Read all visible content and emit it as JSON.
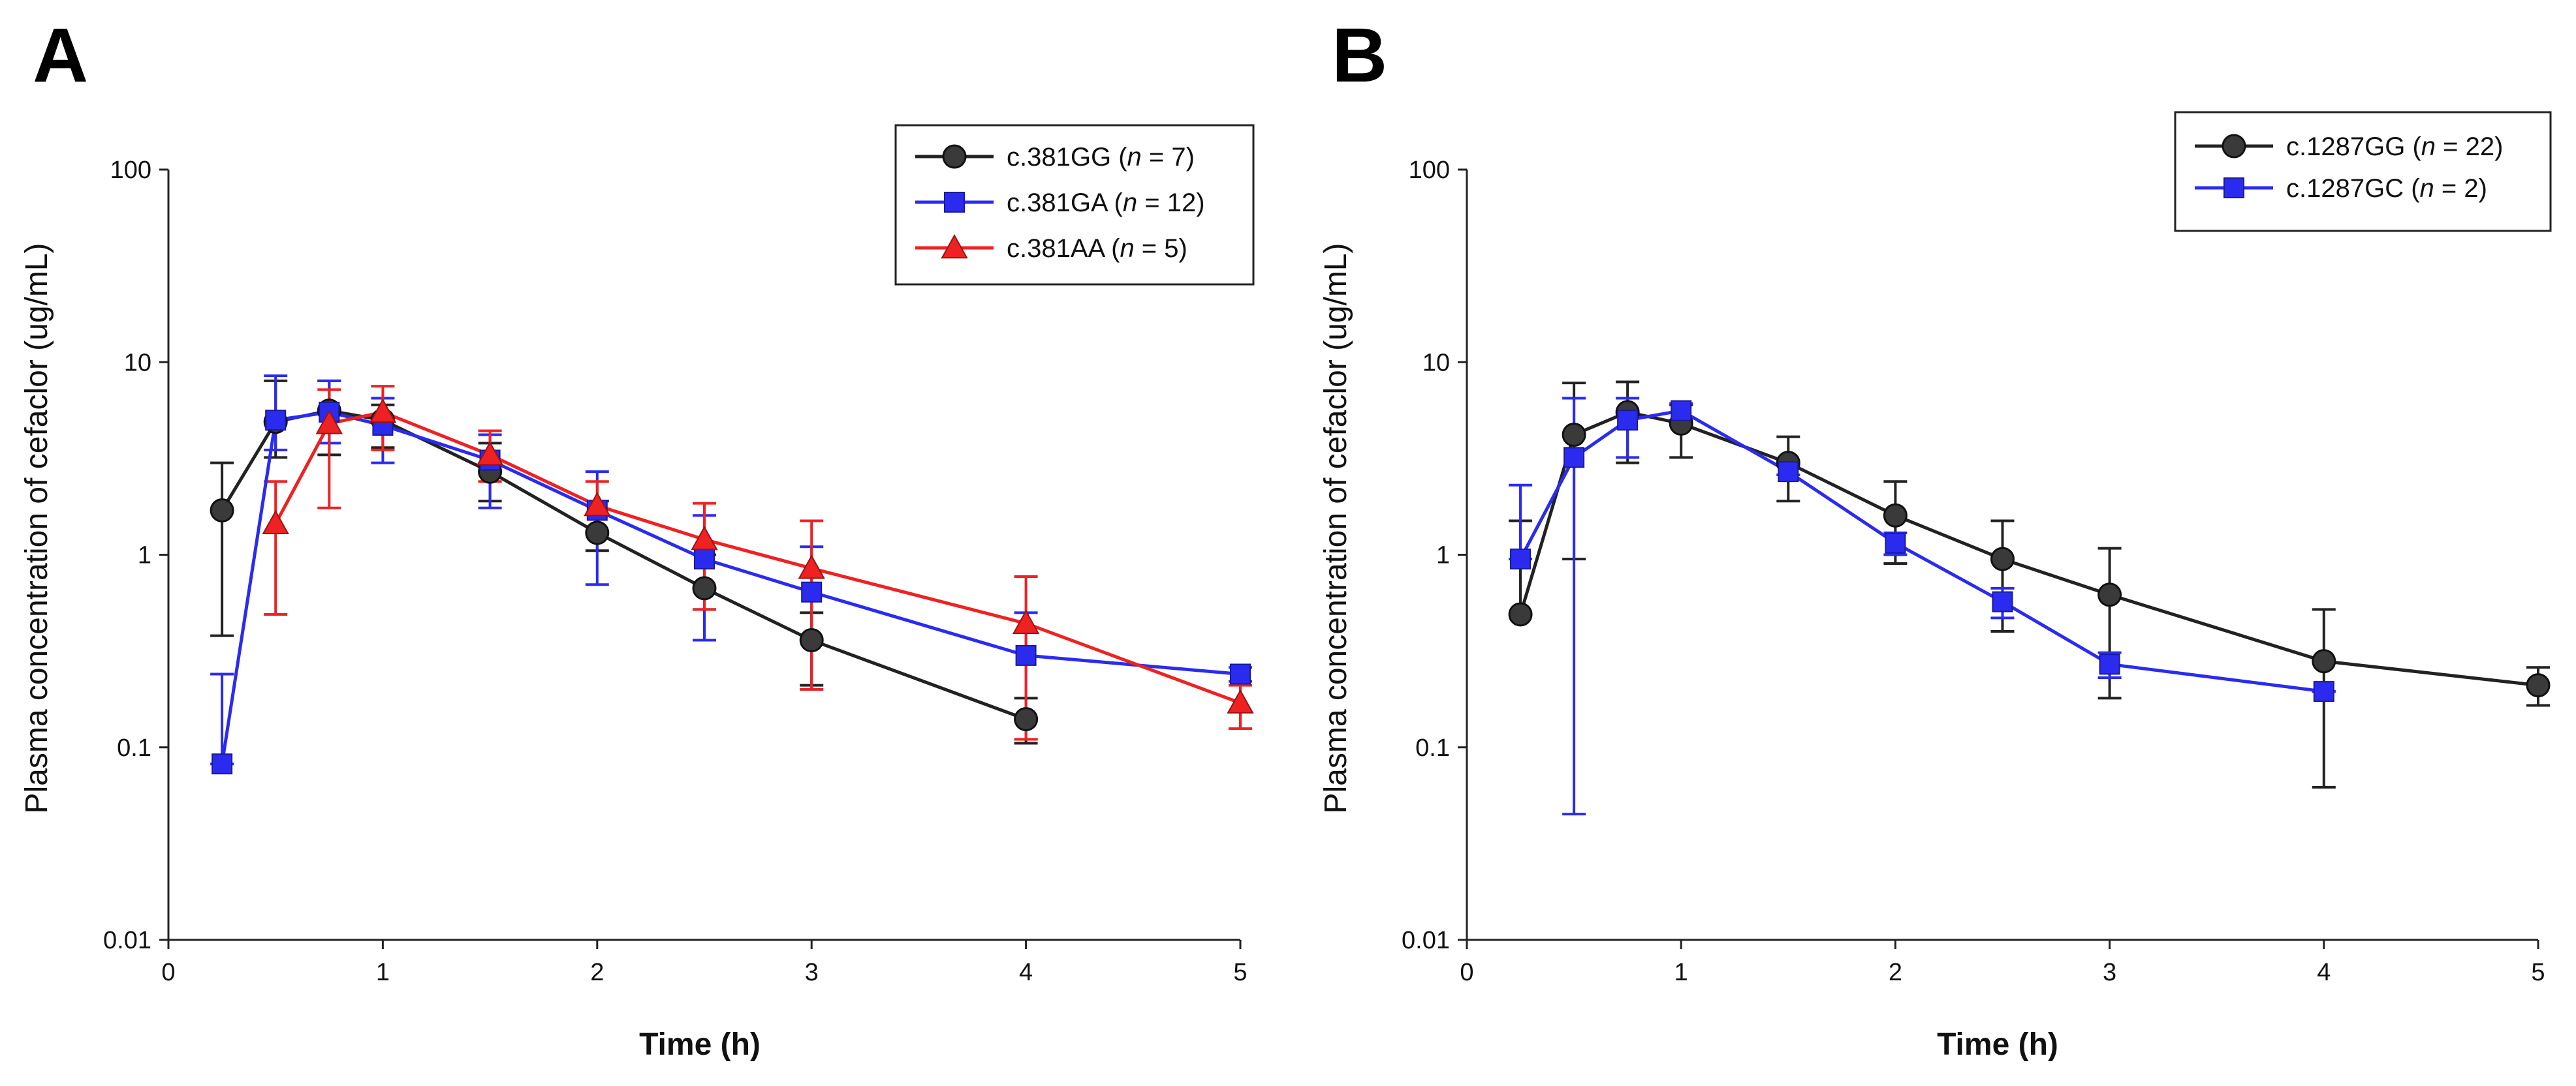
{
  "chart_data": [
    {
      "panel_label": "A",
      "type": "line",
      "y_scale": "log",
      "xlabel": "Time (h)",
      "ylabel": "Plasma concentration of cefaclor (ug/mL)",
      "xlim": [
        0,
        5
      ],
      "ylim": [
        0.01,
        100
      ],
      "x_ticks": [
        "0",
        "1",
        "2",
        "3",
        "4",
        "5"
      ],
      "y_ticks": [
        "0.01",
        "0.1",
        "1",
        "10",
        "100"
      ],
      "legend_position": "top-right",
      "series": [
        {
          "label_prefix": "c.381GG (",
          "label_n": "n",
          "label_suffix": " = 7)",
          "color": "#222222",
          "marker": "circle",
          "x": [
            0.25,
            0.5,
            0.75,
            1,
            1.5,
            2,
            2.5,
            3,
            4
          ],
          "y": [
            1.7,
            4.9,
            5.6,
            5.0,
            2.7,
            1.3,
            0.67,
            0.36,
            0.14
          ],
          "err_low": [
            0.38,
            3.2,
            3.3,
            3.6,
            1.9,
            1.05,
            0.52,
            0.21,
            0.105
          ],
          "err_high": [
            3.0,
            8.0,
            8.0,
            6.0,
            3.8,
            1.9,
            1.0,
            0.5,
            0.18
          ]
        },
        {
          "label_prefix": "c.381GA (",
          "label_n": "n",
          "label_suffix": " = 12)",
          "color": "#2b2bf0",
          "marker": "square",
          "x": [
            0.25,
            0.5,
            0.75,
            1,
            1.5,
            2,
            2.5,
            3,
            4,
            5
          ],
          "y": [
            0.082,
            5.0,
            5.5,
            4.7,
            3.1,
            1.7,
            0.95,
            0.64,
            0.3,
            0.24
          ],
          "err_low": [
            0.082,
            3.5,
            3.8,
            3.0,
            1.75,
            0.7,
            0.36,
            0.2,
            0.11,
            0.22
          ],
          "err_high": [
            0.24,
            8.5,
            8.0,
            6.5,
            4.2,
            2.7,
            1.6,
            1.1,
            0.5,
            0.26
          ]
        },
        {
          "label_prefix": "c.381AA (",
          "label_n": "n",
          "label_suffix": " = 5)",
          "color": "#ee2222",
          "marker": "triangle",
          "x": [
            0.5,
            0.75,
            1,
            1.5,
            2,
            2.5,
            3,
            4,
            5
          ],
          "y": [
            1.45,
            4.8,
            5.5,
            3.3,
            1.8,
            1.2,
            0.85,
            0.44,
            0.17
          ],
          "err_low": [
            0.49,
            1.75,
            3.5,
            2.4,
            1.3,
            0.52,
            0.2,
            0.11,
            0.125
          ],
          "err_high": [
            2.4,
            7.2,
            7.5,
            4.4,
            2.4,
            1.85,
            1.5,
            0.77,
            0.21
          ]
        }
      ]
    },
    {
      "panel_label": "B",
      "type": "line",
      "y_scale": "log",
      "xlabel": "Time (h)",
      "ylabel": "Plasma concentration of cefaclor (ug/mL)",
      "xlim": [
        0,
        5
      ],
      "ylim": [
        0.01,
        100
      ],
      "x_ticks": [
        "0",
        "1",
        "2",
        "3",
        "4",
        "5"
      ],
      "y_ticks": [
        "0.01",
        "0.1",
        "1",
        "10",
        "100"
      ],
      "legend_position": "top-right",
      "series": [
        {
          "label_prefix": "c.1287GG (",
          "label_n": "n",
          "label_suffix": " = 22)",
          "color": "#222222",
          "marker": "circle",
          "x": [
            0.25,
            0.5,
            0.75,
            1,
            1.5,
            2,
            2.5,
            3,
            4,
            5
          ],
          "y": [
            0.49,
            4.2,
            5.5,
            4.8,
            3.0,
            1.6,
            0.95,
            0.62,
            0.28,
            0.21
          ],
          "err_low": [
            0.49,
            0.95,
            3.0,
            3.2,
            1.9,
            0.9,
            0.4,
            0.18,
            0.062,
            0.165
          ],
          "err_high": [
            1.5,
            7.8,
            7.9,
            6.0,
            4.1,
            2.4,
            1.5,
            1.08,
            0.52,
            0.26
          ]
        },
        {
          "label_prefix": "c.1287GC (",
          "label_n": "n",
          "label_suffix": " = 2)",
          "color": "#2b2bf0",
          "marker": "square",
          "x": [
            0.25,
            0.5,
            0.75,
            1,
            1.5,
            2,
            2.5,
            3,
            4
          ],
          "y": [
            0.95,
            3.2,
            5.0,
            5.6,
            2.7,
            1.15,
            0.57,
            0.27,
            0.195
          ],
          "err_low": [
            0.95,
            0.045,
            3.2,
            5.0,
            2.6,
            1.0,
            0.47,
            0.23,
            0.195
          ],
          "err_high": [
            2.3,
            6.5,
            6.5,
            6.1,
            2.9,
            1.3,
            0.67,
            0.31,
            0.195
          ]
        }
      ]
    }
  ]
}
